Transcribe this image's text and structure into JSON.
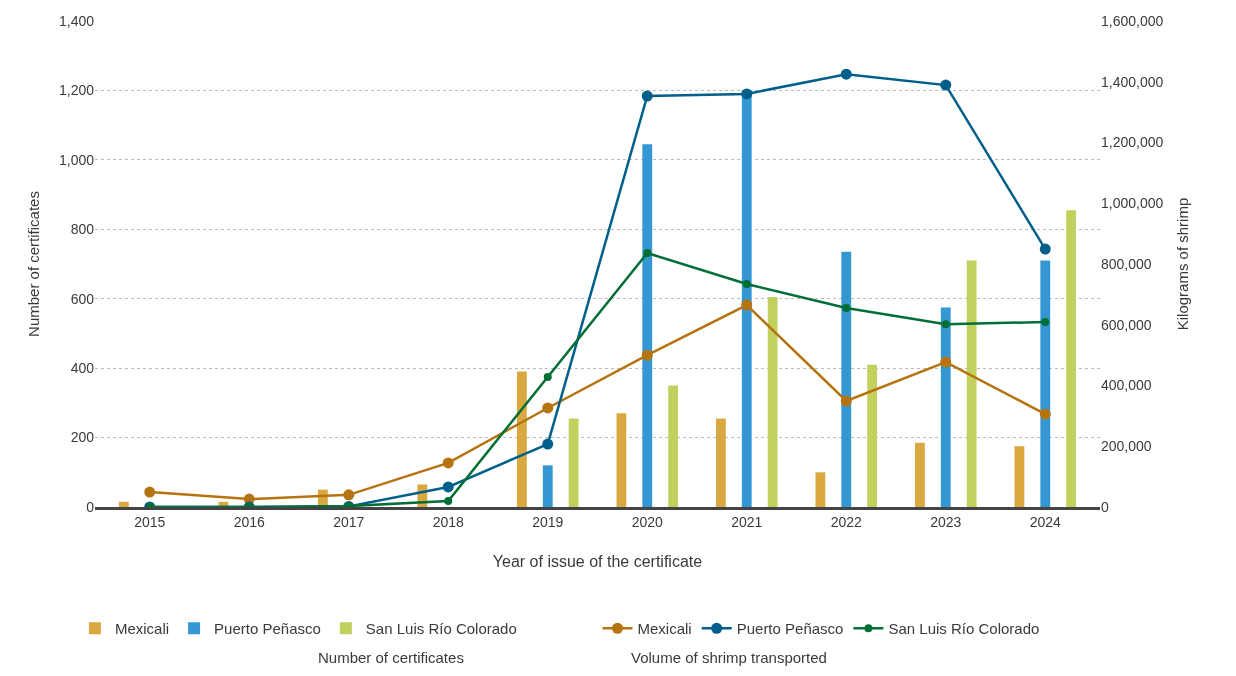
{
  "chart_data": {
    "type": "bar",
    "categories": [
      "2015",
      "2016",
      "2017",
      "2018",
      "2019",
      "2020",
      "2021",
      "2022",
      "2023",
      "2024"
    ],
    "xlabel": "Year of issue of the certificate",
    "ylabel": "Number of certificates",
    "y2label": "Kilograms of shrimp",
    "ylim": [
      0,
      1400
    ],
    "yticks": [
      {
        "value": 0,
        "label": "0"
      },
      {
        "value": 200,
        "label": "200"
      },
      {
        "value": 400,
        "label": "400"
      },
      {
        "value": 600,
        "label": "600"
      },
      {
        "value": 800,
        "label": "800"
      },
      {
        "value": 1000,
        "label": "1,000"
      },
      {
        "value": 1200,
        "label": "1,200"
      },
      {
        "value": 1400,
        "label": "1,400"
      }
    ],
    "y2lim": [
      0,
      1600000
    ],
    "y2ticks": [
      {
        "value": 0,
        "label": "0"
      },
      {
        "value": 200000,
        "label": "200,000"
      },
      {
        "value": 400000,
        "label": "400,000"
      },
      {
        "value": 600000,
        "label": "600,000"
      },
      {
        "value": 800000,
        "label": "800,000"
      },
      {
        "value": 1000000,
        "label": "1,000,000"
      },
      {
        "value": 1200000,
        "label": "1,200,000"
      },
      {
        "value": 1400000,
        "label": "1,400,000"
      },
      {
        "value": 1600000,
        "label": "1,600,000"
      }
    ],
    "series": [
      {
        "name": "Mexicali",
        "color": "#d9a840",
        "values": [
          15,
          15,
          50,
          65,
          390,
          270,
          255,
          100,
          185,
          175
        ]
      },
      {
        "name": "Puerto Peñasco",
        "color": "#3397d4",
        "values": [
          null,
          null,
          null,
          null,
          120,
          1045,
          1200,
          735,
          575,
          710
        ]
      },
      {
        "name": "San Luis Río Colorado",
        "color": "#c2d15e",
        "values": [
          null,
          null,
          null,
          null,
          255,
          350,
          605,
          410,
          710,
          855
        ]
      },
      {
        "name": "Mexicali",
        "type": "line",
        "axis": "y2",
        "color": "#b5740f",
        "values": [
          49000,
          26000,
          40000,
          145000,
          326000,
          500000,
          665000,
          349000,
          477000,
          306000
        ]
      },
      {
        "name": "Puerto Peñasco",
        "type": "line",
        "axis": "y2",
        "color": "#005f8a",
        "values": [
          0,
          0,
          2000,
          66000,
          207000,
          1353000,
          1360000,
          1425000,
          1389000,
          849000
        ]
      },
      {
        "name": "San Luis Río Colorado",
        "type": "line",
        "axis": "y2",
        "color": "#006e35",
        "values": [
          0,
          0,
          3000,
          20000,
          428000,
          836000,
          734000,
          655000,
          602000,
          609000
        ]
      }
    ],
    "annotations": [
      "Number of certificates",
      "Volume of shrimp transported"
    ],
    "grid": "y",
    "legend": "bottom",
    "marker": "circle",
    "line_style": "solid"
  }
}
